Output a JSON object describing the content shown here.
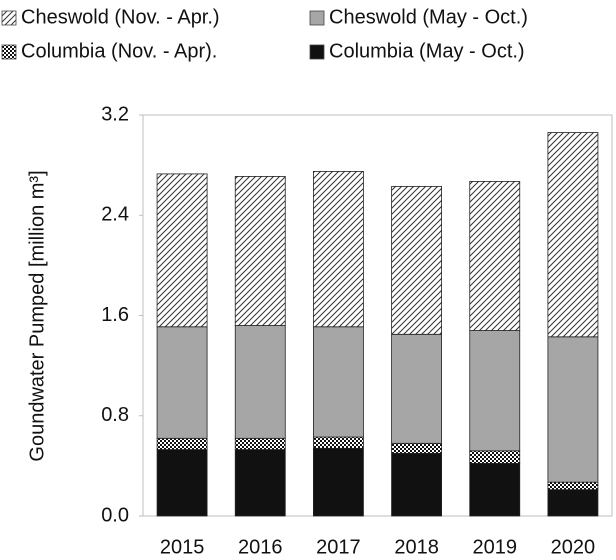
{
  "chart_data": {
    "type": "stacked_bar",
    "y_label": "Goundwater Pumped [million m³]",
    "categories": [
      "2015",
      "2016",
      "2017",
      "2018",
      "2019",
      "2020"
    ],
    "series": [
      {
        "name": "Columbia (May - Oct.)",
        "color": "#111111",
        "pattern": "solid",
        "values": [
          0.53,
          0.53,
          0.54,
          0.5,
          0.42,
          0.21
        ]
      },
      {
        "name": "Columbia (Nov. - Apr).",
        "color": "#111111",
        "pattern": "checker",
        "values": [
          0.09,
          0.09,
          0.09,
          0.08,
          0.1,
          0.06
        ]
      },
      {
        "name": "Cheswold (May - Oct.)",
        "color": "#a6a6a6",
        "pattern": "solid",
        "values": [
          0.89,
          0.9,
          0.88,
          0.87,
          0.96,
          1.16
        ]
      },
      {
        "name": "Cheswold (Nov. - Apr.)",
        "color": "#333333",
        "pattern": "diagonal",
        "values": [
          1.22,
          1.19,
          1.24,
          1.18,
          1.19,
          1.63
        ]
      }
    ],
    "legend_order": [
      3,
      2,
      1,
      0
    ],
    "ylim": [
      0,
      3.2
    ],
    "yticks": [
      {
        "value": 0,
        "label": "0.0"
      },
      {
        "value": 0.8,
        "label": "0.8"
      },
      {
        "value": 1.6,
        "label": "1.6"
      },
      {
        "value": 2.4,
        "label": "2.4"
      },
      {
        "value": 3.2,
        "label": "3.2"
      }
    ],
    "grid": false
  }
}
